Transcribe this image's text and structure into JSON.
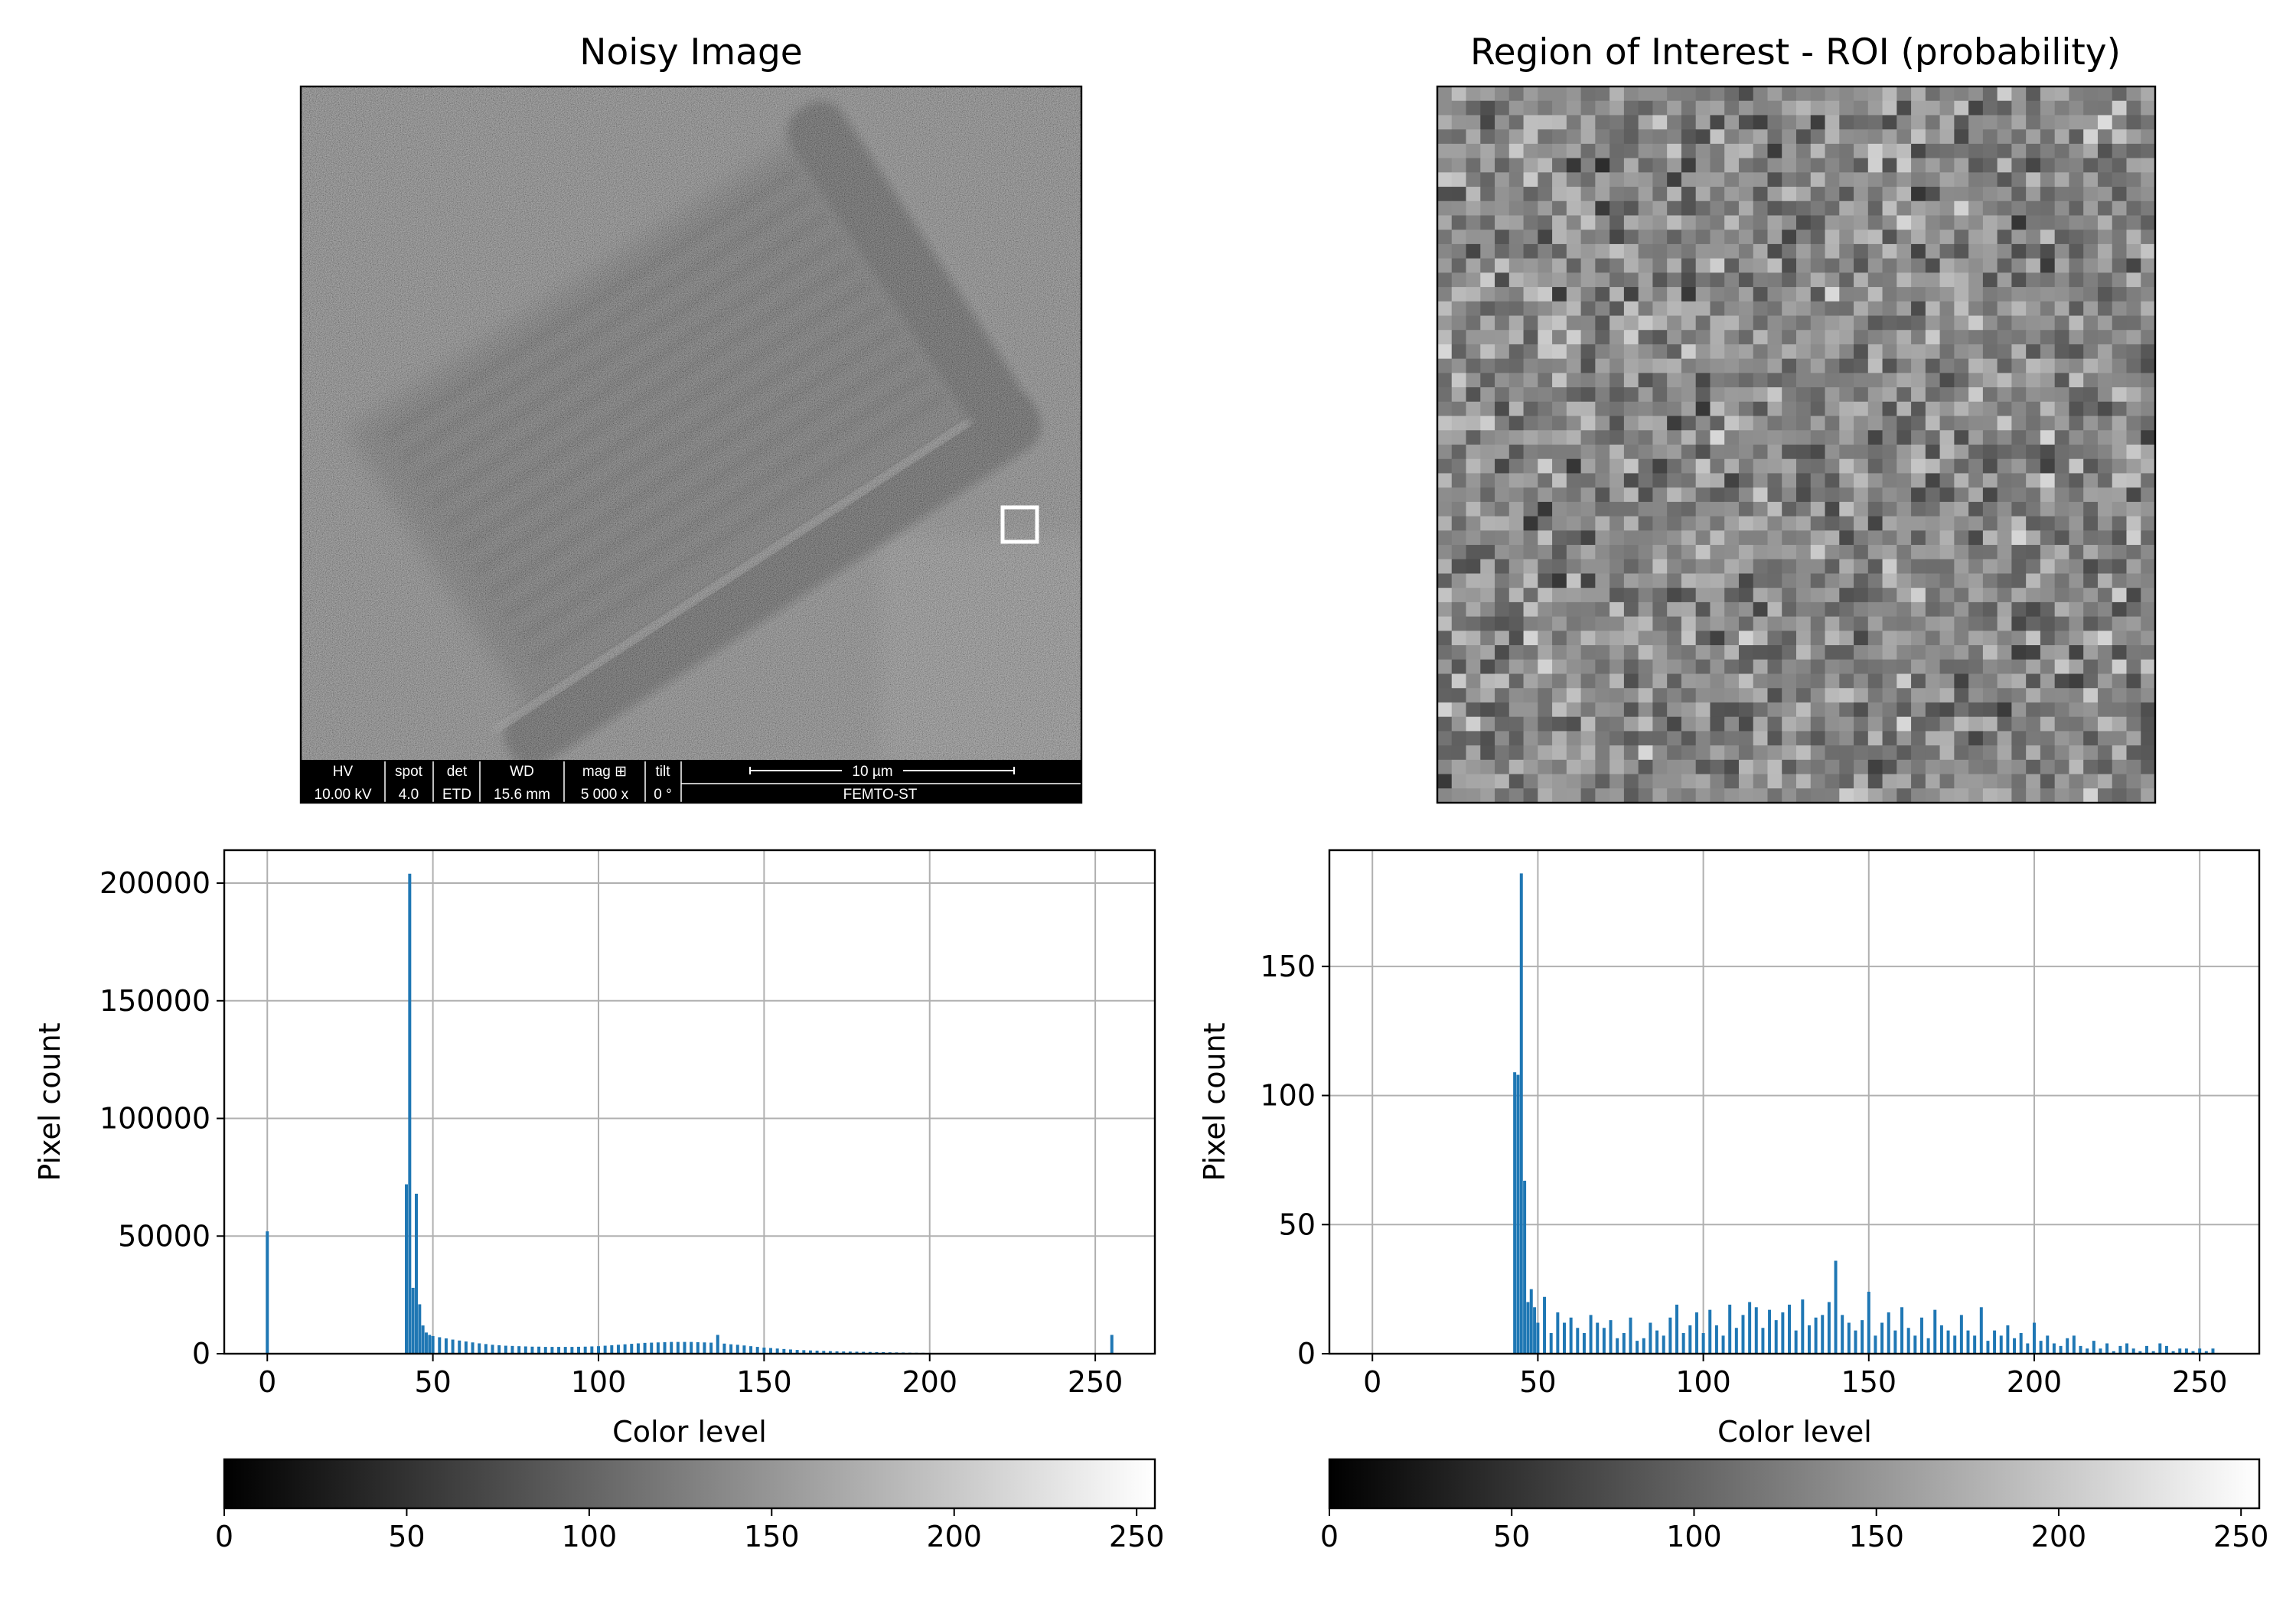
{
  "panels": {
    "noisy": {
      "title": "Noisy Image"
    },
    "roi": {
      "title": "Region of Interest - ROI (probability)"
    }
  },
  "sem_info": {
    "headers": [
      "HV",
      "spot",
      "det",
      "WD",
      "mag ⊞",
      "tilt"
    ],
    "values": [
      "10.00 kV",
      "4.0",
      "ETD",
      "15.6 mm",
      "5 000 x",
      "0 °"
    ],
    "scale_label": "10 µm",
    "lab": "FEMTO-ST"
  },
  "colors": {
    "bar": "#1f77b4",
    "grid": "#b0b0b0",
    "roi_marker": "#ffffff"
  },
  "chart_data": [
    {
      "type": "bar",
      "id": "hist_full",
      "title": "",
      "xlabel": "Color level",
      "ylabel": "Pixel count",
      "xlim": [
        -13,
        268
      ],
      "ylim": [
        0,
        214000
      ],
      "xticks": [
        0,
        50,
        100,
        150,
        200,
        250
      ],
      "yticks": [
        0,
        50000,
        100000,
        150000,
        200000
      ],
      "grid": true,
      "series": [
        {
          "x": [
            0,
            42,
            43,
            44,
            45,
            46,
            47,
            48,
            49,
            50,
            52,
            54,
            56,
            58,
            60,
            62,
            64,
            66,
            68,
            70,
            72,
            74,
            76,
            78,
            80,
            82,
            84,
            86,
            88,
            90,
            92,
            94,
            96,
            98,
            100,
            102,
            104,
            106,
            108,
            110,
            112,
            114,
            116,
            118,
            120,
            122,
            124,
            126,
            128,
            130,
            132,
            134,
            136,
            138,
            140,
            142,
            144,
            146,
            148,
            150,
            152,
            154,
            156,
            158,
            160,
            162,
            164,
            166,
            168,
            170,
            172,
            174,
            176,
            178,
            180,
            182,
            184,
            186,
            188,
            190,
            192,
            194,
            196,
            198,
            200,
            202,
            204,
            206,
            208,
            210,
            212,
            214,
            216,
            218,
            220,
            225,
            230,
            235,
            240,
            245,
            250,
            255
          ],
          "values": [
            52000,
            72000,
            204000,
            28000,
            68000,
            21000,
            12000,
            9000,
            8000,
            7500,
            7000,
            6500,
            6000,
            5600,
            5200,
            4800,
            4400,
            4100,
            3800,
            3600,
            3400,
            3300,
            3200,
            3100,
            3000,
            3000,
            2900,
            2900,
            2900,
            2900,
            2900,
            2950,
            3000,
            3100,
            3200,
            3400,
            3600,
            3800,
            4000,
            4200,
            4400,
            4600,
            4700,
            4800,
            4900,
            5000,
            5000,
            5000,
            5000,
            4900,
            4800,
            4700,
            8000,
            4300,
            4000,
            3800,
            3500,
            3200,
            2900,
            2600,
            2400,
            2200,
            2000,
            1800,
            1600,
            1500,
            1400,
            1300,
            1200,
            1100,
            1000,
            950,
            900,
            850,
            800,
            750,
            700,
            650,
            600,
            550,
            500,
            450,
            400,
            380,
            350,
            320,
            300,
            280,
            250,
            230,
            200,
            180,
            160,
            140,
            120,
            100,
            80,
            60,
            40,
            30,
            20,
            8000
          ]
        }
      ]
    },
    {
      "type": "bar",
      "id": "hist_roi",
      "title": "",
      "xlabel": "Color level",
      "ylabel": "Pixel count",
      "xlim": [
        -13,
        268
      ],
      "ylim": [
        0,
        195
      ],
      "xticks": [
        0,
        50,
        100,
        150,
        200,
        250
      ],
      "yticks": [
        0,
        50,
        100,
        150
      ],
      "grid": true,
      "series": [
        {
          "x": [
            43,
            44,
            45,
            46,
            47,
            48,
            49,
            50,
            52,
            54,
            56,
            58,
            60,
            62,
            64,
            66,
            68,
            70,
            72,
            74,
            76,
            78,
            80,
            82,
            84,
            86,
            88,
            90,
            92,
            94,
            96,
            98,
            100,
            102,
            104,
            106,
            108,
            110,
            112,
            114,
            116,
            118,
            120,
            122,
            124,
            126,
            128,
            130,
            132,
            134,
            136,
            138,
            140,
            142,
            144,
            146,
            148,
            150,
            152,
            154,
            156,
            158,
            160,
            162,
            164,
            166,
            168,
            170,
            172,
            174,
            176,
            178,
            180,
            182,
            184,
            186,
            188,
            190,
            192,
            194,
            196,
            198,
            200,
            202,
            204,
            206,
            208,
            210,
            212,
            214,
            216,
            218,
            220,
            222,
            224,
            226,
            228,
            230,
            232,
            234,
            236,
            238,
            240,
            242,
            244,
            246,
            248,
            250,
            252,
            254
          ],
          "values": [
            109,
            108,
            186,
            67,
            20,
            25,
            18,
            12,
            22,
            8,
            16,
            12,
            14,
            10,
            8,
            15,
            12,
            10,
            13,
            6,
            8,
            14,
            5,
            6,
            12,
            9,
            7,
            14,
            19,
            8,
            11,
            16,
            8,
            17,
            11,
            7,
            19,
            10,
            15,
            20,
            18,
            10,
            17,
            13,
            16,
            19,
            9,
            21,
            11,
            14,
            15,
            20,
            36,
            15,
            12,
            9,
            13,
            24,
            7,
            12,
            16,
            9,
            18,
            10,
            7,
            14,
            6,
            17,
            11,
            9,
            7,
            15,
            9,
            7,
            18,
            5,
            9,
            7,
            11,
            6,
            8,
            4,
            12,
            5,
            7,
            4,
            3,
            6,
            7,
            3,
            2,
            5,
            2,
            4,
            1,
            3,
            4,
            2,
            1,
            3,
            1,
            4,
            3,
            1,
            2,
            2,
            1,
            2,
            1,
            2
          ]
        }
      ]
    },
    {
      "type": "colorbar",
      "id": "cbar_left",
      "range": [
        0,
        255
      ],
      "ticks": [
        0,
        50,
        100,
        150,
        200,
        250
      ],
      "colormap": "gray"
    },
    {
      "type": "colorbar",
      "id": "cbar_right",
      "range": [
        0,
        255
      ],
      "ticks": [
        0,
        50,
        100,
        150,
        200,
        250
      ],
      "colormap": "gray"
    }
  ]
}
